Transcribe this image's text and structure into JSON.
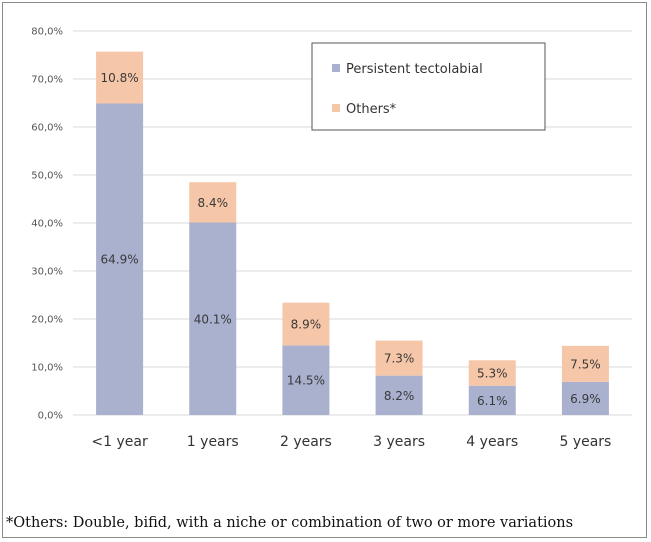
{
  "chart_data": {
    "type": "bar",
    "stacked": true,
    "categories": [
      "<1 year",
      "1 years",
      "2 years",
      "3 years",
      "4 years",
      "5 years"
    ],
    "series": [
      {
        "name": "Persistent tectolabial",
        "values": [
          64.9,
          40.1,
          14.5,
          8.2,
          6.1,
          6.9
        ],
        "labels": [
          "64.9%",
          "40.1%",
          "14.5%",
          "8.2%",
          "6.1%",
          "6.9%"
        ],
        "color": "#a9b1cf"
      },
      {
        "name": "Others*",
        "values": [
          10.8,
          8.4,
          8.9,
          7.3,
          5.3,
          7.5
        ],
        "labels": [
          "10.8%",
          "8.4%",
          "8.9%",
          "7.3%",
          "5.3%",
          "7.5%"
        ],
        "color": "#f6c6a8"
      }
    ],
    "ylim": [
      0,
      80
    ],
    "yticks": [
      "0,0%",
      "10,0%",
      "20,0%",
      "30,0%",
      "40,0%",
      "50,0%",
      "60,0%",
      "70,0%",
      "80,0%"
    ],
    "grid": true,
    "legend": "top-right",
    "title": "",
    "xlabel": "",
    "ylabel": ""
  },
  "footnote": "*Others: Double, bifid, with a niche or combination of two or more variations",
  "colors": {
    "grid": "#d9d9d9",
    "frame": "#8a8a8a",
    "legend_border": "#555555"
  }
}
